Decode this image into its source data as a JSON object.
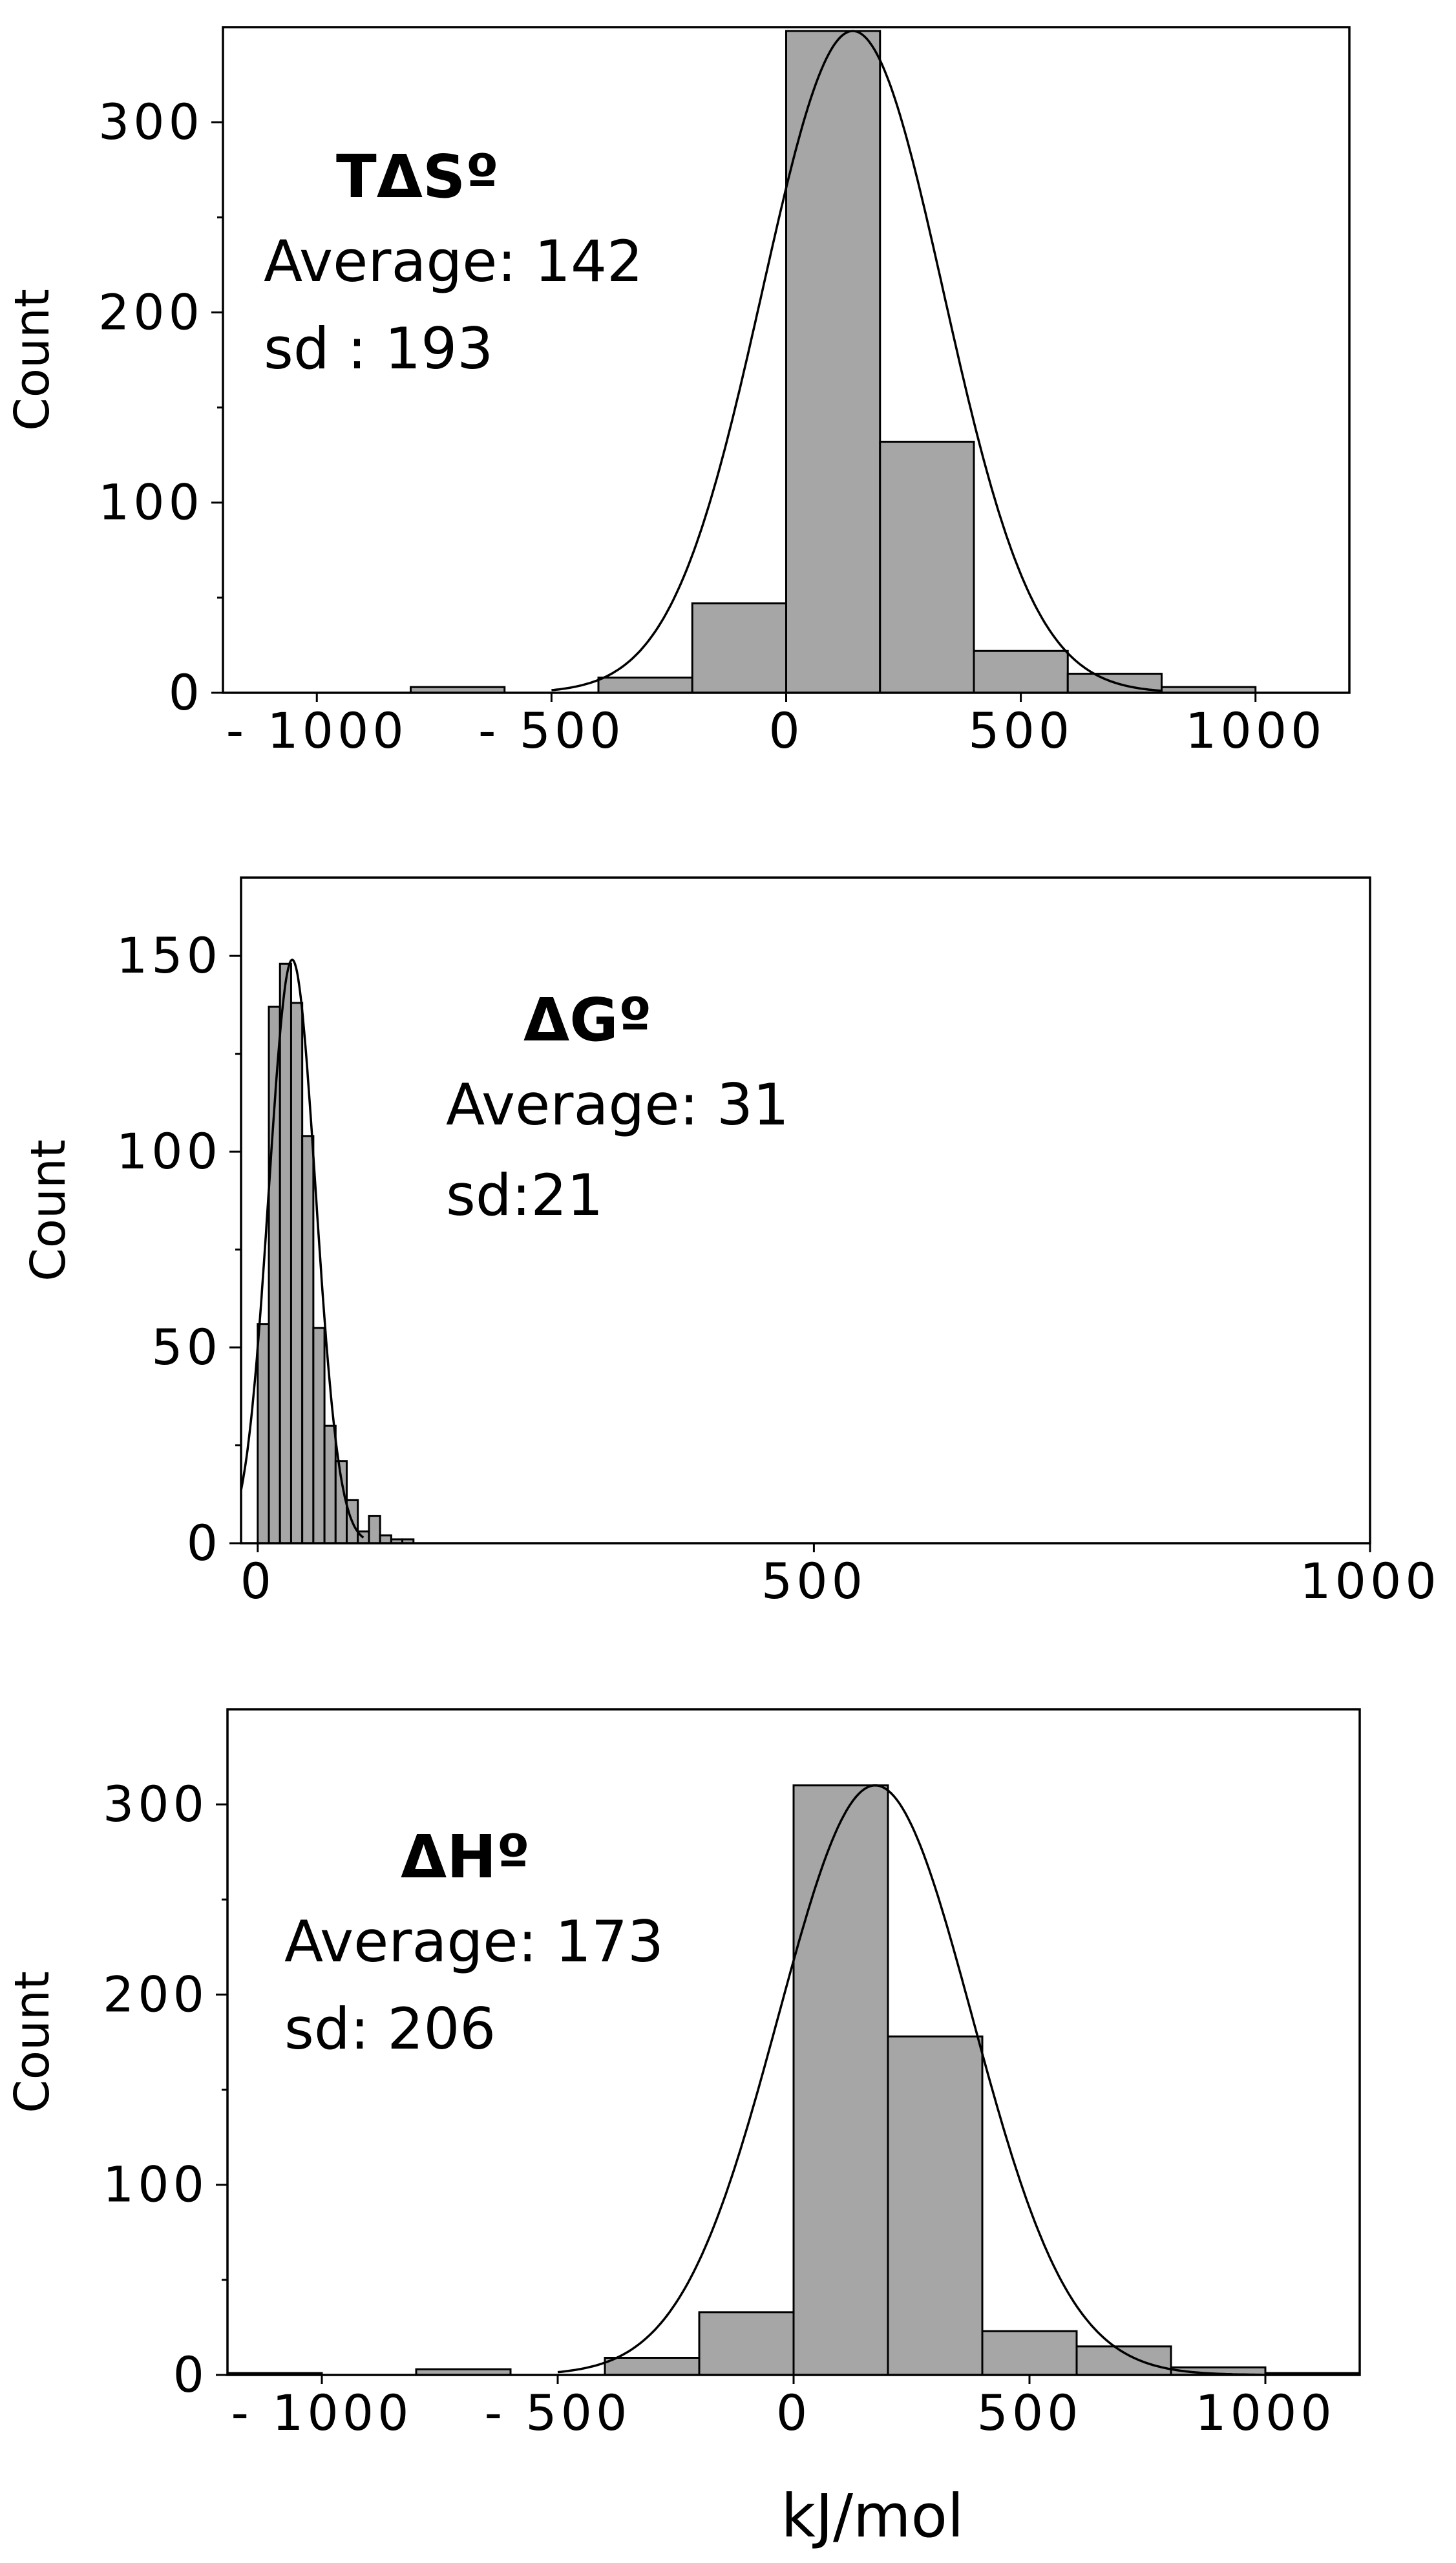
{
  "figure": {
    "common_xlabel": "kJ/mol"
  },
  "chart_data": [
    {
      "type": "bar",
      "subtype": "histogram-with-normal-fit",
      "title": "",
      "xlabel": "",
      "ylabel": "Count",
      "xlim": [
        -1200,
        1200
      ],
      "ylim": [
        0,
        350
      ],
      "x_ticks": [
        -1000,
        -500,
        0,
        500,
        1000
      ],
      "x_tick_labels": [
        "- 1000",
        "- 500",
        "0",
        "500",
        "1000"
      ],
      "y_ticks": [
        0,
        100,
        200,
        300
      ],
      "y_tick_labels": [
        "0",
        "100",
        "200",
        "300"
      ],
      "y_minor_step": 50,
      "bins": [
        {
          "start": -800,
          "end": -600,
          "count": 3
        },
        {
          "start": -400,
          "end": -200,
          "count": 8
        },
        {
          "start": -200,
          "end": 0,
          "count": 47
        },
        {
          "start": 0,
          "end": 200,
          "count": 348
        },
        {
          "start": 200,
          "end": 400,
          "count": 132
        },
        {
          "start": 400,
          "end": 600,
          "count": 22
        },
        {
          "start": 600,
          "end": 800,
          "count": 10
        },
        {
          "start": 800,
          "end": 1000,
          "count": 3
        }
      ],
      "fit": {
        "mean": 142,
        "sd": 193,
        "peak": 348,
        "range": [
          -500,
          800
        ]
      },
      "annotation": {
        "title": "TΔSº",
        "average": "Average: 142",
        "sd": "sd : 193"
      }
    },
    {
      "type": "bar",
      "subtype": "histogram-with-normal-fit",
      "title": "",
      "xlabel": "",
      "ylabel": "Count",
      "xlim": [
        -15,
        1000
      ],
      "ylim": [
        0,
        170
      ],
      "x_ticks": [
        0,
        500,
        1000
      ],
      "x_tick_labels": [
        "0",
        "500",
        "1000"
      ],
      "y_ticks": [
        0,
        50,
        100,
        150
      ],
      "y_tick_labels": [
        "0",
        "50",
        "100",
        "150"
      ],
      "y_minor_step": 25,
      "bins": [
        {
          "start": 0,
          "end": 10,
          "count": 56
        },
        {
          "start": 10,
          "end": 20,
          "count": 137
        },
        {
          "start": 20,
          "end": 30,
          "count": 148
        },
        {
          "start": 30,
          "end": 40,
          "count": 138
        },
        {
          "start": 40,
          "end": 50,
          "count": 104
        },
        {
          "start": 50,
          "end": 60,
          "count": 55
        },
        {
          "start": 60,
          "end": 70,
          "count": 30
        },
        {
          "start": 70,
          "end": 80,
          "count": 21
        },
        {
          "start": 80,
          "end": 90,
          "count": 11
        },
        {
          "start": 90,
          "end": 100,
          "count": 3
        },
        {
          "start": 100,
          "end": 110,
          "count": 7
        },
        {
          "start": 110,
          "end": 120,
          "count": 2
        },
        {
          "start": 120,
          "end": 130,
          "count": 1
        },
        {
          "start": 130,
          "end": 140,
          "count": 1
        },
        {
          "start": 140,
          "end": 150,
          "count": 0
        }
      ],
      "fit": {
        "mean": 31,
        "sd": 21,
        "peak": 149,
        "range": [
          -15,
          95
        ]
      },
      "annotation": {
        "title": "ΔGº",
        "average": "Average: 31",
        "sd": "sd:21"
      }
    },
    {
      "type": "bar",
      "subtype": "histogram-with-normal-fit",
      "title": "",
      "xlabel": "kJ/mol",
      "ylabel": "Count",
      "xlim": [
        -1200,
        1200
      ],
      "ylim": [
        0,
        350
      ],
      "x_ticks": [
        -1000,
        -500,
        0,
        500,
        1000
      ],
      "x_tick_labels": [
        "- 1000",
        "- 500",
        "0",
        "500",
        "1000"
      ],
      "y_ticks": [
        0,
        100,
        200,
        300
      ],
      "y_tick_labels": [
        "0",
        "100",
        "200",
        "300"
      ],
      "y_minor_step": 50,
      "bins": [
        {
          "start": -1200,
          "end": -1000,
          "count": 1
        },
        {
          "start": -800,
          "end": -600,
          "count": 3
        },
        {
          "start": -400,
          "end": -200,
          "count": 9
        },
        {
          "start": -200,
          "end": 0,
          "count": 33
        },
        {
          "start": 0,
          "end": 200,
          "count": 310
        },
        {
          "start": 200,
          "end": 400,
          "count": 178
        },
        {
          "start": 400,
          "end": 600,
          "count": 23
        },
        {
          "start": 600,
          "end": 800,
          "count": 15
        },
        {
          "start": 800,
          "end": 1000,
          "count": 4
        },
        {
          "start": 1000,
          "end": 1200,
          "count": 1
        }
      ],
      "fit": {
        "mean": 173,
        "sd": 206,
        "peak": 310,
        "range": [
          -500,
          1000
        ]
      },
      "annotation": {
        "title": "ΔHº",
        "average": "Average: 173",
        "sd": "sd: 206"
      }
    }
  ]
}
